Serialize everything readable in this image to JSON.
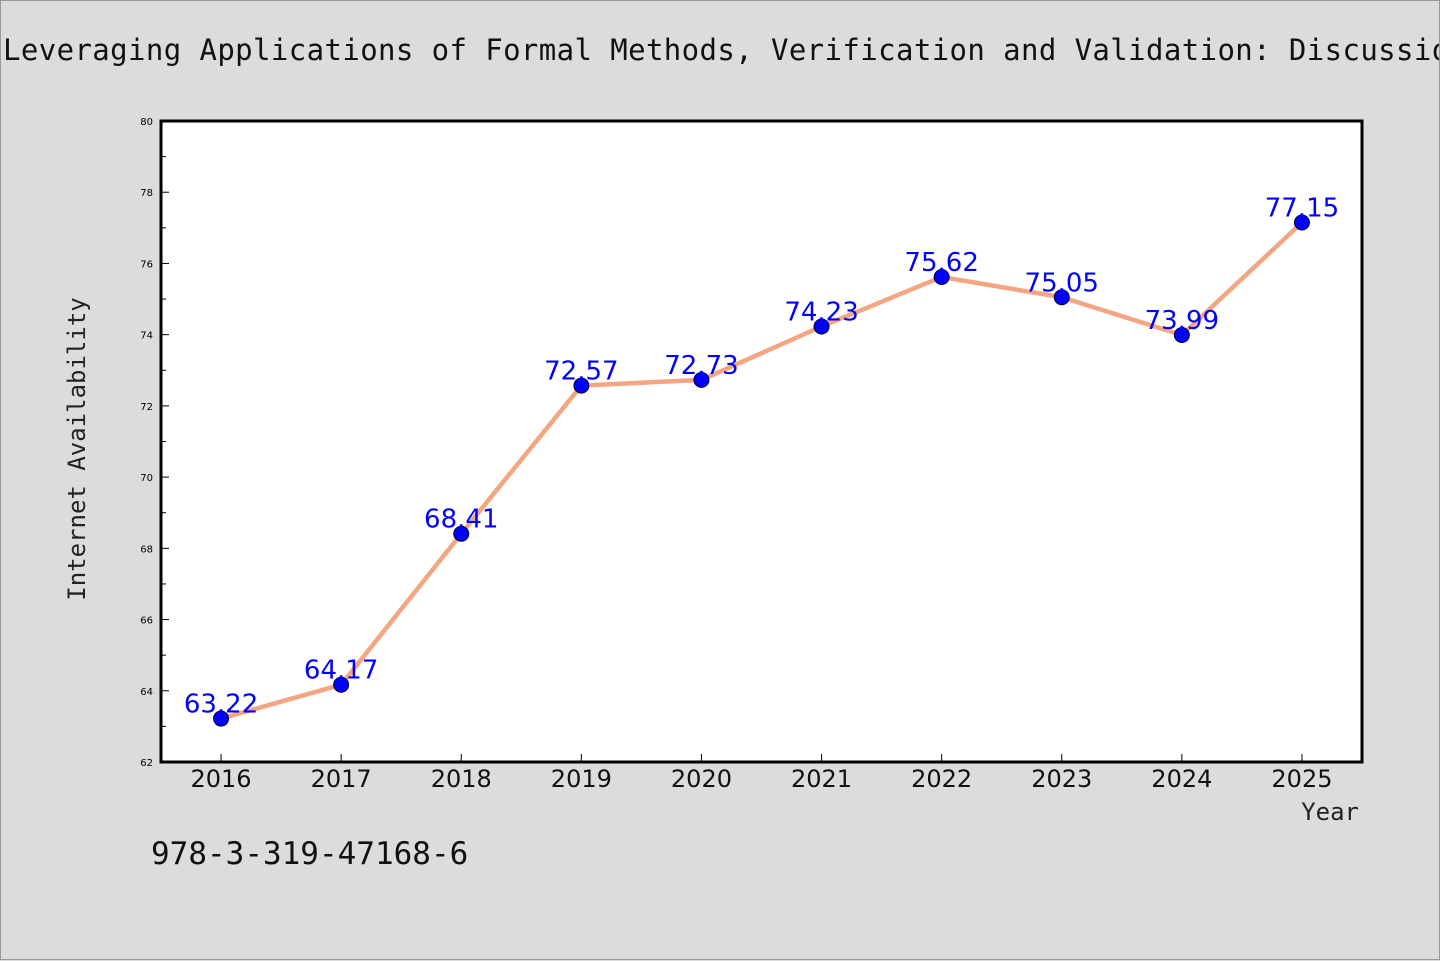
{
  "chart_data": {
    "type": "line",
    "title": "Leveraging Applications of Formal Methods, Verification and Validation: Discussion",
    "xlabel": "Year",
    "ylabel": "Internet Availability",
    "categories": [
      "2016",
      "2017",
      "2018",
      "2019",
      "2020",
      "2021",
      "2022",
      "2023",
      "2024",
      "2025"
    ],
    "values": [
      63.22,
      64.17,
      68.41,
      72.57,
      72.73,
      74.23,
      75.62,
      75.05,
      73.99,
      77.15
    ],
    "data_labels": [
      "63.22",
      "64.17",
      "68.41",
      "72.57",
      "72.73",
      "74.23",
      "75.62",
      "75.05",
      "73.99",
      "77.15"
    ],
    "ylim": [
      62,
      80
    ],
    "y_ticks": [
      62,
      64,
      66,
      68,
      70,
      72,
      74,
      76,
      78,
      80
    ],
    "grid": false,
    "line_color": "#f4a582",
    "marker_color": "#0000ff",
    "label_color": "#0000ff"
  },
  "annotation": {
    "isbn": "978-3-319-47168-6"
  }
}
